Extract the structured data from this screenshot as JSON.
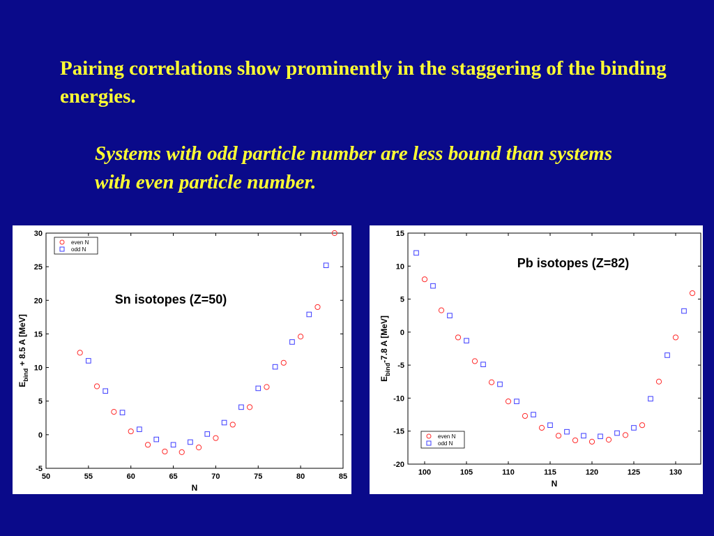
{
  "slide": {
    "headline": "Pairing correlations show prominently in the staggering of the binding energies.",
    "subline": "Systems with odd particle number are less bound than systems with even particle number."
  },
  "colors": {
    "background": "#0a0a8a",
    "text": "#ffff33",
    "even": "#ff2a2a",
    "odd": "#3b3bff"
  },
  "chart_data": [
    {
      "type": "scatter",
      "title": "Sn isotopes (Z=50)",
      "xlabel": "N",
      "ylabel": {
        "main": "E",
        "sub": "bind",
        "rest": " + 8.5 A [MeV]"
      },
      "xlim": [
        50,
        85
      ],
      "ylim": [
        -5,
        30
      ],
      "xticks": [
        50,
        55,
        60,
        65,
        70,
        75,
        80,
        85
      ],
      "yticks": [
        -5,
        0,
        5,
        10,
        15,
        20,
        25,
        30
      ],
      "legend": "top-left",
      "series": [
        {
          "name": "even N",
          "marker": "circle",
          "points": [
            [
              54,
              12.2
            ],
            [
              56,
              7.2
            ],
            [
              58,
              3.4
            ],
            [
              60,
              0.5
            ],
            [
              62,
              -1.5
            ],
            [
              64,
              -2.5
            ],
            [
              66,
              -2.6
            ],
            [
              68,
              -1.9
            ],
            [
              70,
              -0.5
            ],
            [
              72,
              1.5
            ],
            [
              74,
              4.1
            ],
            [
              76,
              7.1
            ],
            [
              78,
              10.7
            ],
            [
              80,
              14.6
            ],
            [
              82,
              19.0
            ],
            [
              84,
              30.0
            ]
          ]
        },
        {
          "name": "odd N",
          "marker": "square",
          "points": [
            [
              55,
              11.0
            ],
            [
              57,
              6.5
            ],
            [
              59,
              3.3
            ],
            [
              61,
              0.8
            ],
            [
              63,
              -0.7
            ],
            [
              65,
              -1.5
            ],
            [
              67,
              -1.1
            ],
            [
              69,
              0.1
            ],
            [
              71,
              1.8
            ],
            [
              73,
              4.1
            ],
            [
              75,
              6.9
            ],
            [
              77,
              10.1
            ],
            [
              79,
              13.8
            ],
            [
              81,
              17.9
            ],
            [
              83,
              25.2
            ]
          ]
        }
      ]
    },
    {
      "type": "scatter",
      "title": "Pb isotopes (Z=82)",
      "xlabel": "N",
      "ylabel": {
        "main": "E",
        "sub": "bind",
        "rest": "-7.8 A [MeV]"
      },
      "xlim": [
        98,
        133
      ],
      "ylim": [
        -20,
        15
      ],
      "xticks": [
        100,
        105,
        110,
        115,
        120,
        125,
        130
      ],
      "yticks": [
        -20,
        -15,
        -10,
        -5,
        0,
        5,
        10,
        15
      ],
      "legend": "bottom-left",
      "series": [
        {
          "name": "even N",
          "marker": "circle",
          "points": [
            [
              100,
              8.0
            ],
            [
              102,
              3.3
            ],
            [
              104,
              -0.8
            ],
            [
              106,
              -4.4
            ],
            [
              108,
              -7.6
            ],
            [
              110,
              -10.5
            ],
            [
              112,
              -12.7
            ],
            [
              114,
              -14.5
            ],
            [
              116,
              -15.7
            ],
            [
              118,
              -16.4
            ],
            [
              120,
              -16.6
            ],
            [
              122,
              -16.3
            ],
            [
              124,
              -15.6
            ],
            [
              126,
              -14.1
            ],
            [
              128,
              -7.5
            ],
            [
              130,
              -0.8
            ],
            [
              132,
              5.9
            ]
          ]
        },
        {
          "name": "odd N",
          "marker": "square",
          "points": [
            [
              99,
              12.0
            ],
            [
              101,
              7.0
            ],
            [
              103,
              2.5
            ],
            [
              105,
              -1.3
            ],
            [
              107,
              -4.9
            ],
            [
              109,
              -7.9
            ],
            [
              111,
              -10.5
            ],
            [
              113,
              -12.5
            ],
            [
              115,
              -14.1
            ],
            [
              117,
              -15.1
            ],
            [
              119,
              -15.7
            ],
            [
              121,
              -15.8
            ],
            [
              123,
              -15.3
            ],
            [
              125,
              -14.5
            ],
            [
              127,
              -10.1
            ],
            [
              129,
              -3.5
            ],
            [
              131,
              3.2
            ]
          ]
        }
      ]
    }
  ]
}
